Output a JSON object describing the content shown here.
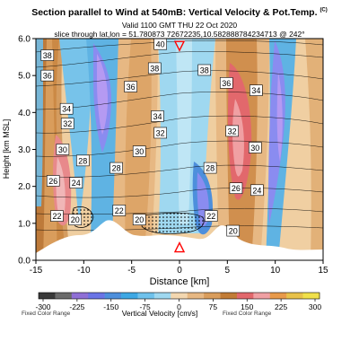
{
  "header": {
    "title": "Section parallel to Wind at 540mB: Vertical Velocity & Pot.Temp.",
    "copyright": "(C)",
    "valid_line": "Valid 1100 GMT THU 22 Oct 2020",
    "slice_line": "slice through lat,lon = 51.780873 72672235,10.582888784234713 @ 242°"
  },
  "chart_data": {
    "type": "heatmap",
    "xlabel": "Distance [km]",
    "ylabel": "Height [km MSL]",
    "xlim": [
      -15,
      15
    ],
    "ylim": [
      0.0,
      6.0
    ],
    "x_ticks": [
      "-15",
      "-10",
      "-5",
      "0",
      "5",
      "10",
      "15"
    ],
    "y_ticks": [
      "0.0",
      "1.0",
      "2.0",
      "3.0",
      "4.0",
      "5.0",
      "6.0"
    ],
    "colorbar": {
      "label": "Vertical Velocity [cm/s]",
      "left_note": "Fixed Color Range",
      "right_note": "Fixed Color Range",
      "ticks": [
        "-300",
        "-225",
        "-150",
        "-75",
        "0",
        "75",
        "150",
        "225",
        "300"
      ],
      "range": [
        -300,
        300
      ]
    },
    "theta_contour_labels": [
      {
        "x": -13.8,
        "y": 5.55,
        "text": "38"
      },
      {
        "x": -13.8,
        "y": 5.0,
        "text": "36"
      },
      {
        "x": -11.8,
        "y": 4.1,
        "text": "34"
      },
      {
        "x": -11.7,
        "y": 3.7,
        "text": "32"
      },
      {
        "x": -12.2,
        "y": 3.0,
        "text": "30"
      },
      {
        "x": -10.1,
        "y": 2.7,
        "text": "28"
      },
      {
        "x": -13.2,
        "y": 2.15,
        "text": "26"
      },
      {
        "x": -10.8,
        "y": 2.1,
        "text": "24"
      },
      {
        "x": -12.8,
        "y": 1.2,
        "text": "22"
      },
      {
        "x": -10.9,
        "y": 1.1,
        "text": "20"
      },
      {
        "x": -6.6,
        "y": 2.5,
        "text": "28"
      },
      {
        "x": -5.1,
        "y": 4.7,
        "text": "36"
      },
      {
        "x": -2.0,
        "y": 5.85,
        "text": "40"
      },
      {
        "x": -2.6,
        "y": 5.2,
        "text": "38"
      },
      {
        "x": -2.3,
        "y": 3.9,
        "text": "34"
      },
      {
        "x": -2.0,
        "y": 3.45,
        "text": "32"
      },
      {
        "x": -4.2,
        "y": 2.95,
        "text": "30"
      },
      {
        "x": -6.3,
        "y": 1.35,
        "text": "22"
      },
      {
        "x": -4.2,
        "y": 1.1,
        "text": "20"
      },
      {
        "x": 2.6,
        "y": 5.15,
        "text": "38"
      },
      {
        "x": 4.9,
        "y": 4.8,
        "text": "36"
      },
      {
        "x": 8.0,
        "y": 4.6,
        "text": "34"
      },
      {
        "x": 5.5,
        "y": 3.5,
        "text": "32"
      },
      {
        "x": 7.9,
        "y": 3.05,
        "text": "30"
      },
      {
        "x": 3.2,
        "y": 2.5,
        "text": "28"
      },
      {
        "x": 5.9,
        "y": 1.95,
        "text": "26"
      },
      {
        "x": 8.1,
        "y": 1.9,
        "text": "24"
      },
      {
        "x": 3.3,
        "y": 1.2,
        "text": "22"
      },
      {
        "x": 5.6,
        "y": 0.8,
        "text": "20"
      }
    ],
    "markers": [
      {
        "x": 0.0,
        "y": 5.8,
        "shape": "triangle-down",
        "color": "#ff0000"
      },
      {
        "x": 0.0,
        "y": 0.35,
        "shape": "triangle-up",
        "color": "#ff0000"
      }
    ]
  }
}
